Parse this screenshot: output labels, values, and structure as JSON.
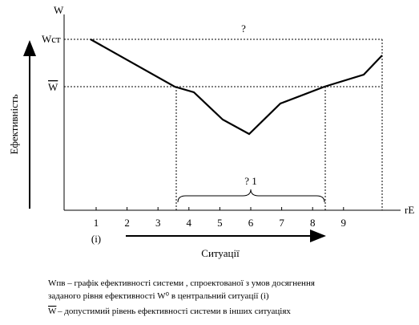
{
  "axis": {
    "y_label": "W",
    "x_label": "rE",
    "w_top": "Wст",
    "w_bar": "W",
    "vertical_title": "Ефективність",
    "horizontal_title": "Ситуації",
    "center_note": "(i)",
    "x_ticks": [
      "1",
      "2",
      "3",
      "4",
      "5",
      "6",
      "7",
      "8",
      "9"
    ]
  },
  "annotations": {
    "top_gap": "?",
    "range_gap": "? 1"
  },
  "caption": {
    "line1": "Wпв – графік ефективності системи , спроектованої з умов досягнення",
    "line2": "заданого рівня ефективності  W⁰ в центральний ситуації  (i)",
    "symbol": "W",
    "line3": " – допустимий рівень ефективності системи в інших ситуаціях"
  }
}
